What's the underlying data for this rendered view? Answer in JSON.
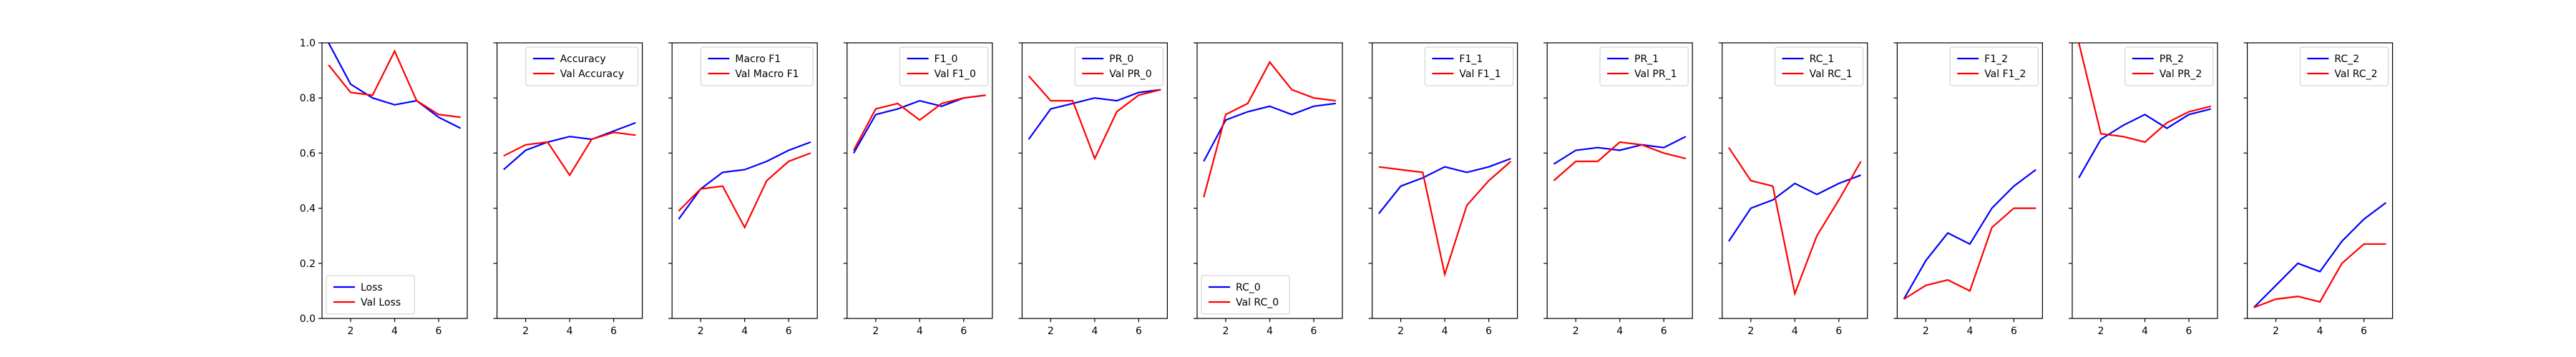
{
  "colors": {
    "train": "#0000ff",
    "val": "#ff0000",
    "axis": "#000000",
    "legend_border": "#cccccc"
  },
  "chart_data": [
    {
      "type": "line",
      "x": [
        1,
        2,
        3,
        4,
        5,
        6,
        7
      ],
      "xticks": [
        "2",
        "4",
        "6"
      ],
      "yticks": [
        "0.0",
        "0.2",
        "0.4",
        "0.6",
        "0.8",
        "1.0"
      ],
      "ylim": [
        0,
        1
      ],
      "legend_position": "lower-left",
      "series": [
        {
          "name": "Loss",
          "color": "blue",
          "values": [
            1.0,
            0.85,
            0.8,
            0.775,
            0.79,
            0.73,
            0.69
          ]
        },
        {
          "name": "Val Loss",
          "color": "red",
          "values": [
            0.92,
            0.82,
            0.81,
            0.97,
            0.79,
            0.74,
            0.73
          ]
        }
      ]
    },
    {
      "type": "line",
      "x": [
        1,
        2,
        3,
        4,
        5,
        6,
        7
      ],
      "xticks": [
        "2",
        "4",
        "6"
      ],
      "yticks": [],
      "ylim": [
        0,
        1
      ],
      "legend_position": "upper-right",
      "series": [
        {
          "name": "Accuracy",
          "color": "blue",
          "values": [
            0.54,
            0.61,
            0.64,
            0.66,
            0.65,
            0.68,
            0.71
          ]
        },
        {
          "name": "Val Accuracy",
          "color": "red",
          "values": [
            0.59,
            0.63,
            0.64,
            0.52,
            0.65,
            0.675,
            0.665
          ]
        }
      ]
    },
    {
      "type": "line",
      "x": [
        1,
        2,
        3,
        4,
        5,
        6,
        7
      ],
      "xticks": [
        "2",
        "4",
        "6"
      ],
      "yticks": [],
      "ylim": [
        0,
        1
      ],
      "legend_position": "upper-right",
      "series": [
        {
          "name": "Macro F1",
          "color": "blue",
          "values": [
            0.36,
            0.47,
            0.53,
            0.54,
            0.57,
            0.61,
            0.64
          ]
        },
        {
          "name": "Val Macro F1",
          "color": "red",
          "values": [
            0.39,
            0.47,
            0.48,
            0.33,
            0.5,
            0.57,
            0.6
          ]
        }
      ]
    },
    {
      "type": "line",
      "x": [
        1,
        2,
        3,
        4,
        5,
        6,
        7
      ],
      "xticks": [
        "2",
        "4",
        "6"
      ],
      "yticks": [],
      "ylim": [
        0,
        1
      ],
      "legend_position": "upper-right",
      "series": [
        {
          "name": "F1_0",
          "color": "blue",
          "values": [
            0.6,
            0.74,
            0.76,
            0.79,
            0.77,
            0.8,
            0.81
          ]
        },
        {
          "name": "Val F1_0",
          "color": "red",
          "values": [
            0.61,
            0.76,
            0.78,
            0.72,
            0.78,
            0.8,
            0.81
          ]
        }
      ]
    },
    {
      "type": "line",
      "x": [
        1,
        2,
        3,
        4,
        5,
        6,
        7
      ],
      "xticks": [
        "2",
        "4",
        "6"
      ],
      "yticks": [],
      "ylim": [
        0,
        1
      ],
      "legend_position": "upper-right",
      "series": [
        {
          "name": "PR_0",
          "color": "blue",
          "values": [
            0.65,
            0.76,
            0.78,
            0.8,
            0.79,
            0.82,
            0.83
          ]
        },
        {
          "name": "Val PR_0",
          "color": "red",
          "values": [
            0.88,
            0.79,
            0.79,
            0.58,
            0.75,
            0.81,
            0.83
          ]
        }
      ]
    },
    {
      "type": "line",
      "x": [
        1,
        2,
        3,
        4,
        5,
        6,
        7
      ],
      "xticks": [
        "2",
        "4",
        "6"
      ],
      "yticks": [],
      "ylim": [
        0,
        1
      ],
      "legend_position": "lower-left",
      "series": [
        {
          "name": "RC_0",
          "color": "blue",
          "values": [
            0.57,
            0.72,
            0.75,
            0.77,
            0.74,
            0.77,
            0.78
          ]
        },
        {
          "name": "Val RC_0",
          "color": "red",
          "values": [
            0.44,
            0.74,
            0.78,
            0.93,
            0.83,
            0.8,
            0.79
          ]
        }
      ]
    },
    {
      "type": "line",
      "x": [
        1,
        2,
        3,
        4,
        5,
        6,
        7
      ],
      "xticks": [
        "2",
        "4",
        "6"
      ],
      "yticks": [],
      "ylim": [
        0,
        1
      ],
      "legend_position": "upper-right",
      "series": [
        {
          "name": "F1_1",
          "color": "blue",
          "values": [
            0.38,
            0.48,
            0.51,
            0.55,
            0.53,
            0.55,
            0.58
          ]
        },
        {
          "name": "Val F1_1",
          "color": "red",
          "values": [
            0.55,
            0.54,
            0.53,
            0.16,
            0.41,
            0.5,
            0.57
          ]
        }
      ]
    },
    {
      "type": "line",
      "x": [
        1,
        2,
        3,
        4,
        5,
        6,
        7
      ],
      "xticks": [
        "2",
        "4",
        "6"
      ],
      "yticks": [],
      "ylim": [
        0,
        1
      ],
      "legend_position": "upper-right",
      "series": [
        {
          "name": "PR_1",
          "color": "blue",
          "values": [
            0.56,
            0.61,
            0.62,
            0.61,
            0.63,
            0.62,
            0.66
          ]
        },
        {
          "name": "Val PR_1",
          "color": "red",
          "values": [
            0.5,
            0.57,
            0.57,
            0.64,
            0.63,
            0.6,
            0.58
          ]
        }
      ]
    },
    {
      "type": "line",
      "x": [
        1,
        2,
        3,
        4,
        5,
        6,
        7
      ],
      "xticks": [
        "2",
        "4",
        "6"
      ],
      "yticks": [],
      "ylim": [
        0,
        1
      ],
      "legend_position": "upper-right",
      "series": [
        {
          "name": "RC_1",
          "color": "blue",
          "values": [
            0.28,
            0.4,
            0.43,
            0.49,
            0.45,
            0.49,
            0.52
          ]
        },
        {
          "name": "Val RC_1",
          "color": "red",
          "values": [
            0.62,
            0.5,
            0.48,
            0.09,
            0.3,
            0.43,
            0.57
          ]
        }
      ]
    },
    {
      "type": "line",
      "x": [
        1,
        2,
        3,
        4,
        5,
        6,
        7
      ],
      "xticks": [
        "2",
        "4",
        "6"
      ],
      "yticks": [],
      "ylim": [
        0,
        1
      ],
      "legend_position": "upper-right",
      "series": [
        {
          "name": "F1_2",
          "color": "blue",
          "values": [
            0.07,
            0.21,
            0.31,
            0.27,
            0.4,
            0.48,
            0.54
          ]
        },
        {
          "name": "Val F1_2",
          "color": "red",
          "values": [
            0.07,
            0.12,
            0.14,
            0.1,
            0.33,
            0.4,
            0.4
          ]
        }
      ]
    },
    {
      "type": "line",
      "x": [
        1,
        2,
        3,
        4,
        5,
        6,
        7
      ],
      "xticks": [
        "2",
        "4",
        "6"
      ],
      "yticks": [],
      "ylim": [
        0,
        1
      ],
      "legend_position": "upper-right",
      "series": [
        {
          "name": "PR_2",
          "color": "blue",
          "values": [
            0.51,
            0.65,
            0.7,
            0.74,
            0.69,
            0.74,
            0.76
          ]
        },
        {
          "name": "Val PR_2",
          "color": "red",
          "values": [
            1.0,
            0.67,
            0.66,
            0.64,
            0.71,
            0.75,
            0.77
          ]
        }
      ]
    },
    {
      "type": "line",
      "x": [
        1,
        2,
        3,
        4,
        5,
        6,
        7
      ],
      "xticks": [
        "2",
        "4",
        "6"
      ],
      "yticks": [],
      "ylim": [
        0,
        1
      ],
      "legend_position": "upper-right",
      "series": [
        {
          "name": "RC_2",
          "color": "blue",
          "values": [
            0.04,
            0.12,
            0.2,
            0.17,
            0.28,
            0.36,
            0.42
          ]
        },
        {
          "name": "Val RC_2",
          "color": "red",
          "values": [
            0.04,
            0.07,
            0.08,
            0.06,
            0.2,
            0.27,
            0.27
          ]
        }
      ]
    }
  ]
}
